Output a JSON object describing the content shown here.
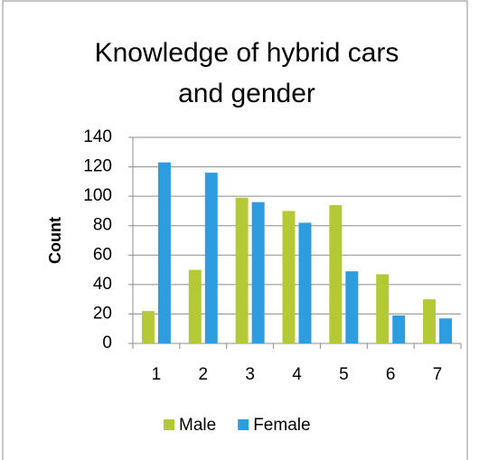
{
  "chart_data": {
    "type": "bar",
    "title": [
      "Knowledge of hybrid cars",
      "and gender"
    ],
    "y_label": "Count",
    "categories": [
      "1",
      "2",
      "3",
      "4",
      "5",
      "6",
      "7"
    ],
    "series": [
      {
        "name": "Male",
        "color": "#b5c935",
        "values": [
          22,
          50,
          99,
          90,
          94,
          47,
          30
        ]
      },
      {
        "name": "Female",
        "color": "#2e9de0",
        "values": [
          123,
          116,
          96,
          82,
          49,
          19,
          17
        ]
      }
    ],
    "ylim": [
      0,
      140
    ],
    "yticks": [
      0,
      20,
      40,
      60,
      80,
      100,
      120,
      140
    ],
    "grid": true,
    "legend": "bottom"
  }
}
